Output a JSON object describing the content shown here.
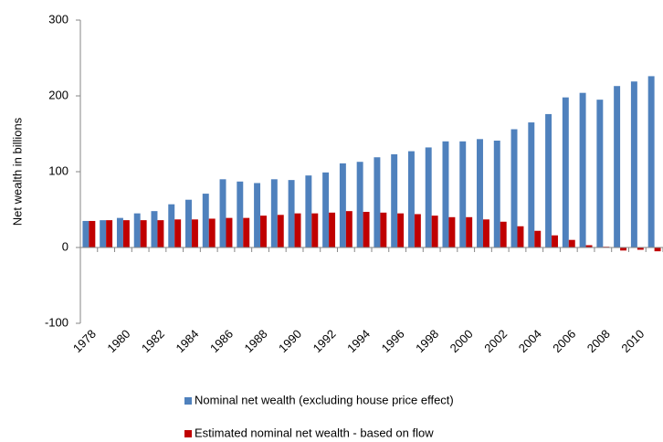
{
  "chart_data": {
    "type": "bar",
    "y_label": "Net wealth in billions",
    "categories": [
      "1978",
      null,
      "1980",
      null,
      "1982",
      null,
      "1984",
      null,
      "1986",
      null,
      "1988",
      null,
      "1990",
      null,
      "1992",
      null,
      "1994",
      null,
      "1996",
      null,
      "1998",
      null,
      "2000",
      null,
      "2002",
      null,
      "2004",
      null,
      "2006",
      null,
      "2008",
      null,
      "2010",
      null
    ],
    "series": [
      {
        "name": "Nominal net wealth (excluding house price effect)",
        "color": "#4f81bd",
        "values": [
          35,
          36,
          39,
          45,
          48,
          57,
          63,
          71,
          90,
          87,
          85,
          90,
          89,
          95,
          99,
          111,
          113,
          119,
          123,
          127,
          132,
          140,
          140,
          143,
          141,
          156,
          165,
          176,
          198,
          204,
          195,
          213,
          219,
          226
        ]
      },
      {
        "name": "Estimated nominal net wealth - based on flow",
        "color": "#c00000",
        "values": [
          35,
          36,
          36,
          36,
          36,
          37,
          37,
          38,
          39,
          39,
          42,
          43,
          45,
          45,
          46,
          48,
          47,
          46,
          45,
          44,
          42,
          40,
          40,
          37,
          34,
          28,
          22,
          16,
          10,
          3,
          1,
          -4,
          -3,
          -5
        ]
      }
    ],
    "ylim": [
      -100,
      300
    ],
    "yticks": [
      -100,
      0,
      100,
      200,
      300
    ],
    "grid": false,
    "legend": "bottom"
  }
}
